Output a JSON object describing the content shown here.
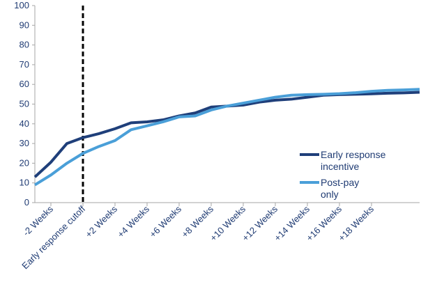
{
  "chart_data": {
    "type": "line",
    "title": "",
    "xlabel": "",
    "ylabel": "",
    "ylim": [
      0,
      100
    ],
    "yticks": [
      0,
      10,
      20,
      30,
      40,
      50,
      60,
      70,
      80,
      90,
      100
    ],
    "x_tick_labels": [
      "-2 Weeks",
      "Early response cutoff",
      "+2 Weeks",
      "+4 Weeks",
      "+6 Weeks",
      "+8 Weeks",
      "+10 Weeks",
      "+12 Weeks",
      "+14 Weeks",
      "+16 Weeks",
      "+18 Weeks"
    ],
    "x": [
      -3,
      -2,
      -1,
      0,
      1,
      2,
      3,
      4,
      5,
      6,
      7,
      8,
      9,
      10,
      11,
      12,
      13,
      14,
      15,
      16,
      17,
      18,
      19,
      20,
      21
    ],
    "cutoff_x": 0,
    "legend_position": "right",
    "series": [
      {
        "name": "Early response incentive",
        "color": "#1f3f7a",
        "values": [
          13,
          20.5,
          30,
          33,
          35,
          37.5,
          40.5,
          41,
          42,
          44,
          45.5,
          48.5,
          49,
          49.5,
          51,
          52,
          52.5,
          53.5,
          54.5,
          54.8,
          55,
          55.2,
          55.5,
          55.7,
          56
        ]
      },
      {
        "name": "Post-pay only",
        "color": "#4a9fd8",
        "values": [
          9,
          14,
          20,
          25,
          28.5,
          31.5,
          37,
          39,
          41,
          43.5,
          44,
          47,
          49,
          50.5,
          52,
          53.5,
          54.5,
          54.8,
          55,
          55.3,
          55.8,
          56.5,
          57,
          57.2,
          57.5
        ]
      }
    ],
    "legend": [
      {
        "line1": "Early response",
        "line2": "incentive"
      },
      {
        "line1": "Post-pay",
        "line2": "only"
      }
    ]
  }
}
